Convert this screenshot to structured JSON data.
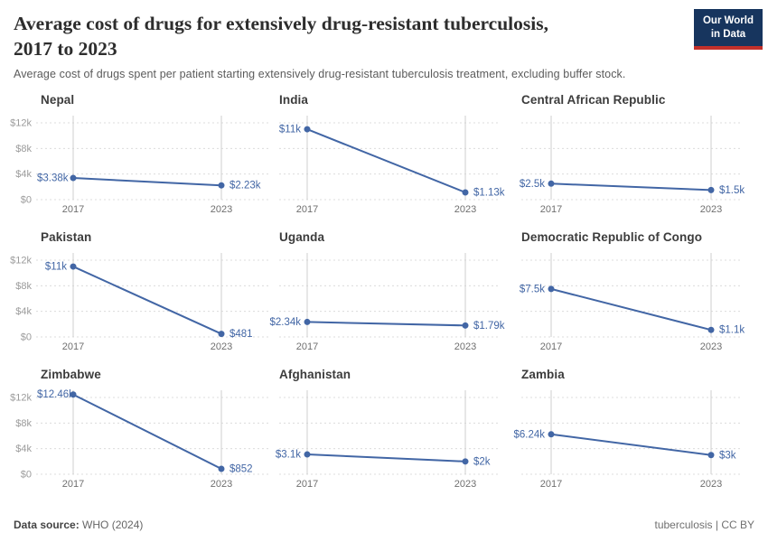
{
  "header": {
    "title_line1": "Average cost of drugs for extensively drug-resistant tuberculosis,",
    "title_line2": "2017 to 2023",
    "subtitle": "Average cost of drugs spent per patient starting extensively drug-resistant tuberculosis treatment, excluding buffer stock.",
    "logo": {
      "line1": "Our World",
      "line2": "in Data"
    }
  },
  "chart_data": {
    "type": "line",
    "x": [
      2017,
      2023
    ],
    "x_tick_labels": [
      "2017",
      "2023"
    ],
    "y_axis": {
      "ticks": [
        0,
        4000,
        8000,
        12000
      ],
      "tick_labels": [
        "$0",
        "$4k",
        "$8k",
        "$12k"
      ],
      "range": [
        0,
        12000
      ]
    },
    "grid": true,
    "facets": [
      {
        "country": "Nepal",
        "values": [
          3380,
          2230
        ],
        "labels": [
          "$3.38k",
          "$2.23k"
        ]
      },
      {
        "country": "India",
        "values": [
          11000,
          1130
        ],
        "labels": [
          "$11k",
          "$1.13k"
        ]
      },
      {
        "country": "Central African Republic",
        "values": [
          2500,
          1500
        ],
        "labels": [
          "$2.5k",
          "$1.5k"
        ]
      },
      {
        "country": "Pakistan",
        "values": [
          11000,
          481
        ],
        "labels": [
          "$11k",
          "$481"
        ]
      },
      {
        "country": "Uganda",
        "values": [
          2340,
          1790
        ],
        "labels": [
          "$2.34k",
          "$1.79k"
        ]
      },
      {
        "country": "Democratic Republic of Congo",
        "values": [
          7500,
          1100
        ],
        "labels": [
          "$7.5k",
          "$1.1k"
        ]
      },
      {
        "country": "Zimbabwe",
        "values": [
          12460,
          852
        ],
        "labels": [
          "$12.46k",
          "$852"
        ]
      },
      {
        "country": "Afghanistan",
        "values": [
          3100,
          2000
        ],
        "labels": [
          "$3.1k",
          "$2k"
        ]
      },
      {
        "country": "Zambia",
        "values": [
          6240,
          3000
        ],
        "labels": [
          "$6.24k",
          "$3k"
        ]
      }
    ],
    "colors": {
      "line": "#4266a5",
      "value_label": "#4266a5",
      "y_tick": "#9b9b9b",
      "x_tick": "#6f6f6f",
      "dashed_grid": "#dcdcdc",
      "vertical_axis": "#cfcfcf",
      "logo_navy": "#17355e",
      "logo_red": "#c2302a"
    }
  },
  "footer": {
    "datasource_label": "Data source:",
    "datasource_value": "WHO (2024)",
    "attribution": "tuberculosis | CC BY"
  }
}
